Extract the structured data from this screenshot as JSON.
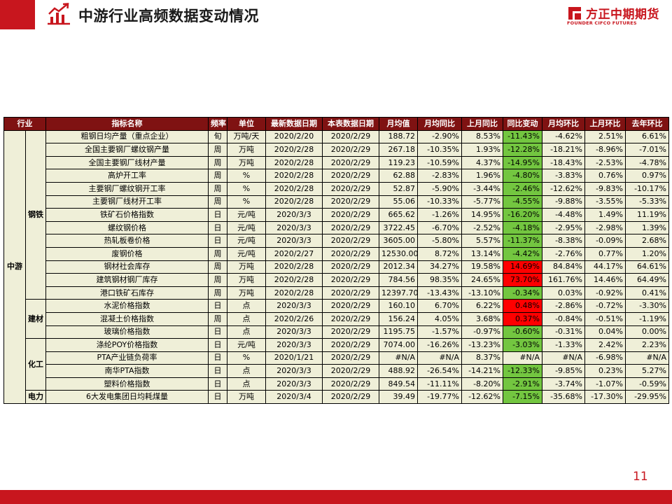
{
  "header": {
    "title": "中游行业高频数据变动情况",
    "accent_color": "#c8161e",
    "icon": "chart-trend-icon"
  },
  "logo": {
    "cn": "方正中期期货",
    "en": "FOUNDER CIFCO FUTURES"
  },
  "table": {
    "columns": [
      "行业",
      "指标名称",
      "频率",
      "单位",
      "最新数据日期",
      "本表数据日期",
      "月均值",
      "月均同比",
      "上月同比",
      "同比变动",
      "月均环比",
      "上月环比",
      "去年环比"
    ],
    "industry": "中游",
    "groups": [
      {
        "name": "钢铁",
        "rows": [
          {
            "name": "粗钢日均产量（重点企业）",
            "freq": "旬",
            "unit": "万吨/天",
            "latest": "2020/2/20",
            "table_date": "2020/2/29",
            "avg": "188.72",
            "yoy": "-2.90%",
            "prev_yoy": "8.53%",
            "chg": "-11.43%",
            "mom": "-4.62%",
            "prev_mom": "2.51%",
            "ly_mom": "6.61%",
            "chg_color": "green"
          },
          {
            "name": "全国主要钢厂螺纹钢产量",
            "freq": "周",
            "unit": "万吨",
            "latest": "2020/2/28",
            "table_date": "2020/2/29",
            "avg": "267.18",
            "yoy": "-10.35%",
            "prev_yoy": "1.93%",
            "chg": "-12.28%",
            "mom": "-18.21%",
            "prev_mom": "-8.96%",
            "ly_mom": "-7.01%",
            "chg_color": "green"
          },
          {
            "name": "全国主要钢厂线材产量",
            "freq": "周",
            "unit": "万吨",
            "latest": "2020/2/28",
            "table_date": "2020/2/29",
            "avg": "119.23",
            "yoy": "-10.59%",
            "prev_yoy": "4.37%",
            "chg": "-14.95%",
            "mom": "-18.43%",
            "prev_mom": "-2.53%",
            "ly_mom": "-4.78%",
            "chg_color": "green"
          },
          {
            "name": "高炉开工率",
            "freq": "周",
            "unit": "%",
            "latest": "2020/2/28",
            "table_date": "2020/2/29",
            "avg": "62.88",
            "yoy": "-2.83%",
            "prev_yoy": "1.96%",
            "chg": "-4.80%",
            "mom": "-3.83%",
            "prev_mom": "0.76%",
            "ly_mom": "0.97%",
            "chg_color": "green"
          },
          {
            "name": "主要钢厂螺纹钢开工率",
            "freq": "周",
            "unit": "%",
            "latest": "2020/2/28",
            "table_date": "2020/2/29",
            "avg": "52.87",
            "yoy": "-5.90%",
            "prev_yoy": "-3.44%",
            "chg": "-2.46%",
            "mom": "-12.62%",
            "prev_mom": "-9.83%",
            "ly_mom": "-10.17%",
            "chg_color": "green"
          },
          {
            "name": "主要钢厂线材开工率",
            "freq": "周",
            "unit": "%",
            "latest": "2020/2/28",
            "table_date": "2020/2/29",
            "avg": "55.06",
            "yoy": "-10.33%",
            "prev_yoy": "-5.77%",
            "chg": "-4.55%",
            "mom": "-9.88%",
            "prev_mom": "-3.55%",
            "ly_mom": "-5.33%",
            "chg_color": "green"
          },
          {
            "name": "铁矿石价格指数",
            "freq": "日",
            "unit": "元/吨",
            "latest": "2020/3/3",
            "table_date": "2020/2/29",
            "avg": "665.62",
            "yoy": "-1.26%",
            "prev_yoy": "14.95%",
            "chg": "-16.20%",
            "mom": "-4.48%",
            "prev_mom": "1.49%",
            "ly_mom": "11.19%",
            "chg_color": "green"
          },
          {
            "name": "螺纹钢价格",
            "freq": "日",
            "unit": "元/吨",
            "latest": "2020/3/3",
            "table_date": "2020/2/29",
            "avg": "3722.45",
            "yoy": "-6.70%",
            "prev_yoy": "-2.52%",
            "chg": "-4.18%",
            "mom": "-2.95%",
            "prev_mom": "-2.98%",
            "ly_mom": "1.39%",
            "chg_color": "green"
          },
          {
            "name": "热轧板卷价格",
            "freq": "日",
            "unit": "元/吨",
            "latest": "2020/3/3",
            "table_date": "2020/2/29",
            "avg": "3605.00",
            "yoy": "-5.80%",
            "prev_yoy": "5.57%",
            "chg": "-11.37%",
            "mom": "-8.38%",
            "prev_mom": "-0.09%",
            "ly_mom": "2.68%",
            "chg_color": "green"
          },
          {
            "name": "废钢价格",
            "freq": "周",
            "unit": "元/吨",
            "latest": "2020/2/27",
            "table_date": "2020/2/29",
            "avg": "12530.00",
            "yoy": "8.72%",
            "prev_yoy": "13.14%",
            "chg": "-4.42%",
            "mom": "-2.76%",
            "prev_mom": "0.77%",
            "ly_mom": "1.20%",
            "chg_color": "green"
          },
          {
            "name": "钢材社会库存",
            "freq": "周",
            "unit": "万吨",
            "latest": "2020/2/28",
            "table_date": "2020/2/29",
            "avg": "2012.34",
            "yoy": "34.27%",
            "prev_yoy": "19.58%",
            "chg": "14.69%",
            "mom": "84.84%",
            "prev_mom": "44.17%",
            "ly_mom": "64.61%",
            "chg_color": "red"
          },
          {
            "name": "建筑钢材钢厂库存",
            "freq": "周",
            "unit": "万吨",
            "latest": "2020/2/28",
            "table_date": "2020/2/29",
            "avg": "784.56",
            "yoy": "98.35%",
            "prev_yoy": "24.65%",
            "chg": "73.70%",
            "mom": "161.76%",
            "prev_mom": "14.46%",
            "ly_mom": "64.49%",
            "chg_color": "red"
          },
          {
            "name": "港口铁矿石库存",
            "freq": "周",
            "unit": "万吨",
            "latest": "2020/2/28",
            "table_date": "2020/2/29",
            "avg": "12397.70",
            "yoy": "-13.43%",
            "prev_yoy": "-13.10%",
            "chg": "-0.34%",
            "mom": "0.03%",
            "prev_mom": "-0.92%",
            "ly_mom": "0.41%",
            "chg_color": "green"
          }
        ]
      },
      {
        "name": "建材",
        "rows": [
          {
            "name": "水泥价格指数",
            "freq": "日",
            "unit": "点",
            "latest": "2020/3/3",
            "table_date": "2020/2/29",
            "avg": "160.10",
            "yoy": "6.70%",
            "prev_yoy": "6.22%",
            "chg": "0.48%",
            "mom": "-2.86%",
            "prev_mom": "-0.72%",
            "ly_mom": "-3.30%",
            "chg_color": "red"
          },
          {
            "name": "混凝土价格指数",
            "freq": "周",
            "unit": "点",
            "latest": "2020/2/26",
            "table_date": "2020/2/29",
            "avg": "156.24",
            "yoy": "4.05%",
            "prev_yoy": "3.68%",
            "chg": "0.37%",
            "mom": "-0.84%",
            "prev_mom": "-0.51%",
            "ly_mom": "-1.19%",
            "chg_color": "red"
          },
          {
            "name": "玻璃价格指数",
            "freq": "日",
            "unit": "点",
            "latest": "2020/3/3",
            "table_date": "2020/2/29",
            "avg": "1195.75",
            "yoy": "-1.57%",
            "prev_yoy": "-0.97%",
            "chg": "-0.60%",
            "mom": "-0.31%",
            "prev_mom": "0.04%",
            "ly_mom": "0.00%",
            "chg_color": "green"
          }
        ]
      },
      {
        "name": "化工",
        "rows": [
          {
            "name": "涤纶POY价格指数",
            "freq": "日",
            "unit": "元/吨",
            "latest": "2020/3/3",
            "table_date": "2020/2/29",
            "avg": "7074.00",
            "yoy": "-16.26%",
            "prev_yoy": "-13.23%",
            "chg": "-3.03%",
            "mom": "-1.33%",
            "prev_mom": "2.42%",
            "ly_mom": "2.23%",
            "chg_color": "green"
          },
          {
            "name": "PTA产业链负荷率",
            "freq": "日",
            "unit": "%",
            "latest": "2020/1/21",
            "table_date": "2020/2/29",
            "avg": "#N/A",
            "yoy": "#N/A",
            "prev_yoy": "8.37%",
            "chg": "#N/A",
            "mom": "#N/A",
            "prev_mom": "-6.98%",
            "ly_mom": "#N/A",
            "chg_color": "none"
          },
          {
            "name": "南华PTA指数",
            "freq": "日",
            "unit": "点",
            "latest": "2020/3/3",
            "table_date": "2020/2/29",
            "avg": "488.92",
            "yoy": "-26.54%",
            "prev_yoy": "-14.21%",
            "chg": "-12.33%",
            "mom": "-9.85%",
            "prev_mom": "0.23%",
            "ly_mom": "5.27%",
            "chg_color": "green"
          },
          {
            "name": "塑料价格指数",
            "freq": "日",
            "unit": "点",
            "latest": "2020/3/3",
            "table_date": "2020/2/29",
            "avg": "849.54",
            "yoy": "-11.11%",
            "prev_yoy": "-8.20%",
            "chg": "-2.91%",
            "mom": "-3.74%",
            "prev_mom": "-1.07%",
            "ly_mom": "-0.59%",
            "chg_color": "green"
          }
        ]
      },
      {
        "name": "电力",
        "rows": [
          {
            "name": "6大发电集团日均耗煤量",
            "freq": "日",
            "unit": "万吨",
            "latest": "2020/3/4",
            "table_date": "2020/2/29",
            "avg": "39.49",
            "yoy": "-19.77%",
            "prev_yoy": "-12.62%",
            "chg": "-7.15%",
            "mom": "-35.68%",
            "prev_mom": "-17.30%",
            "ly_mom": "-29.95%",
            "chg_color": "green"
          }
        ]
      }
    ]
  },
  "footer": {
    "page_number": "11"
  }
}
